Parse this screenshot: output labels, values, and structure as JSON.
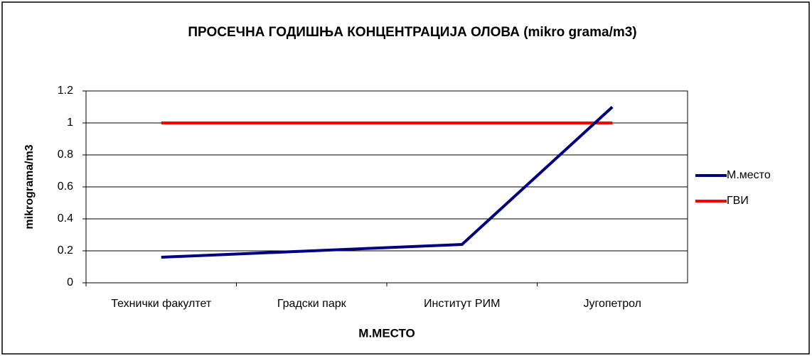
{
  "chart_data": {
    "type": "line",
    "title": "ПРОСЕЧНА ГОДИШЊА КОНЦЕНТРАЦИЈА ОЛОВА (mikro grama/m3)",
    "x_label": "M.МЕСТО",
    "y_label": "mikrograma/m3",
    "categories": [
      "Технички факултет",
      "Градски парк",
      "Институт РИМ",
      "Југопетрол"
    ],
    "series": [
      {
        "name": "М.место",
        "color": "#000080",
        "values": [
          0.16,
          0.2,
          0.24,
          1.1
        ]
      },
      {
        "name": "ГВИ",
        "color": "#ff0000",
        "values": [
          1,
          1,
          1,
          1
        ]
      }
    ],
    "ylim": [
      0,
      1.2
    ],
    "yticks": [
      0,
      0.2,
      0.4,
      0.6,
      0.8,
      1,
      1.2
    ],
    "grid": true,
    "legend": "right"
  }
}
